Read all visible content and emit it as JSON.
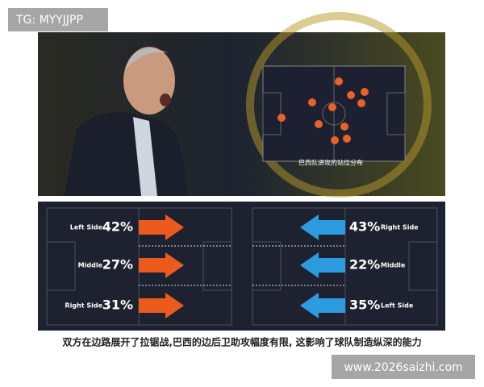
{
  "watermark": "TG: MYYJJPP",
  "photo": {
    "caption": "巴西队进攻的站位分布"
  },
  "left_panel": {
    "rows": [
      {
        "label": "Left Side",
        "percent": "42%"
      },
      {
        "label": "Middle",
        "percent": "27%"
      },
      {
        "label": "Right Side",
        "percent": "31%"
      }
    ]
  },
  "right_panel": {
    "rows": [
      {
        "label": "Right Side",
        "percent": "43%"
      },
      {
        "label": "Middle",
        "percent": "22%"
      },
      {
        "label": "Left Side",
        "percent": "35%"
      }
    ]
  },
  "caption": "双方在边路展开了拉锯战,巴西的边后卫助攻幅度有限, 这影响了球队制造纵深的能力",
  "site_watermark": "www.2026saizhi.com"
}
